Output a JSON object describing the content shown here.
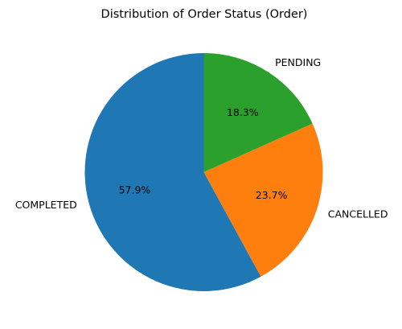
{
  "chart_data": {
    "type": "pie",
    "title": "Distribution of Order Status (Order)",
    "slices": [
      {
        "label": "COMPLETED",
        "value": 57.9,
        "pct_label": "57.9%",
        "color": "#1f77b4"
      },
      {
        "label": "CANCELLED",
        "value": 23.7,
        "pct_label": "23.7%",
        "color": "#ff7f0e"
      },
      {
        "label": "PENDING",
        "value": 18.3,
        "pct_label": "18.3%",
        "color": "#2ca02c"
      }
    ],
    "start_angle_deg": 90,
    "direction": "counterclockwise"
  }
}
